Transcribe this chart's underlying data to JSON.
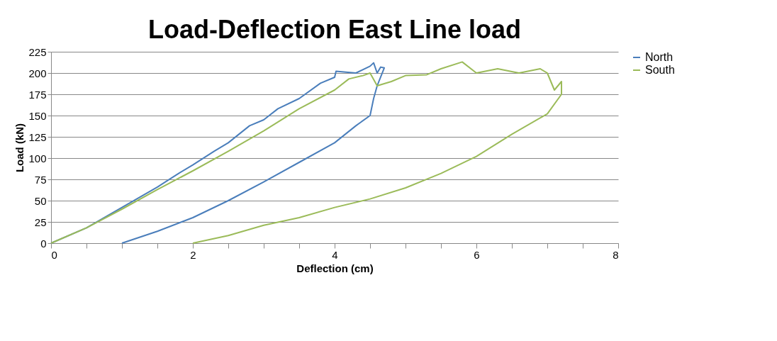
{
  "chart_data": {
    "type": "line",
    "title": "Load-Deflection East Line load",
    "xlabel": "Deflection (cm)",
    "ylabel": "Load (kN)",
    "xlim": [
      0,
      8
    ],
    "xticks": [
      0,
      {
        "value": 0.5,
        "label": null
      },
      {
        "value": 1,
        "label": null
      },
      {
        "value": 1.5,
        "label": null
      },
      2,
      {
        "value": 2.5,
        "label": null
      },
      {
        "value": 3,
        "label": null
      },
      {
        "value": 3.5,
        "label": null
      },
      4,
      {
        "value": 4.5,
        "label": null
      },
      {
        "value": 5,
        "label": null
      },
      {
        "value": 5.5,
        "label": null
      },
      6,
      {
        "value": 6.5,
        "label": null
      },
      {
        "value": 7,
        "label": null
      },
      {
        "value": 7.5,
        "label": null
      },
      8
    ],
    "ylim": [
      0,
      225
    ],
    "yticks": [
      0,
      25,
      50,
      75,
      100,
      125,
      150,
      175,
      200,
      225
    ],
    "grid": "y",
    "legend": "right",
    "line_style": "solid",
    "marker": "none",
    "series": [
      {
        "name": "North",
        "color": "#4a7ebb",
        "x": [
          0,
          0.5,
          1,
          1.5,
          1.8,
          2,
          2.3,
          2.5,
          2.8,
          3,
          3.2,
          3.5,
          3.8,
          4,
          4.02,
          4.3,
          4.5,
          4.55,
          4.6,
          4.65,
          4.7,
          4.6,
          4.55,
          4.5,
          4.3,
          4,
          3.5,
          3,
          2.5,
          2,
          1.5,
          1
        ],
        "values": [
          0,
          18,
          42,
          66,
          82,
          92,
          108,
          118,
          138,
          145,
          158,
          170,
          188,
          195,
          202,
          200,
          208,
          212,
          200,
          207,
          206,
          185,
          170,
          150,
          138,
          118,
          95,
          72,
          50,
          30,
          14,
          0
        ]
      },
      {
        "name": "South",
        "color": "#9bbb59",
        "x": [
          0,
          0.5,
          1,
          1.5,
          2,
          2.5,
          3,
          3.5,
          4,
          4.2,
          4.4,
          4.5,
          4.6,
          4.8,
          5,
          5.3,
          5.5,
          5.8,
          6,
          6.3,
          6.6,
          6.9,
          7,
          7.1,
          7.2,
          7.2,
          7,
          6.5,
          6,
          5.5,
          5,
          4.5,
          4,
          3.5,
          3,
          2.5,
          2
        ],
        "values": [
          0,
          18,
          40,
          63,
          85,
          108,
          132,
          158,
          180,
          193,
          197,
          200,
          185,
          190,
          197,
          198,
          205,
          213,
          200,
          205,
          200,
          205,
          200,
          180,
          190,
          175,
          152,
          128,
          102,
          82,
          65,
          52,
          42,
          30,
          21,
          9,
          0
        ]
      }
    ]
  }
}
